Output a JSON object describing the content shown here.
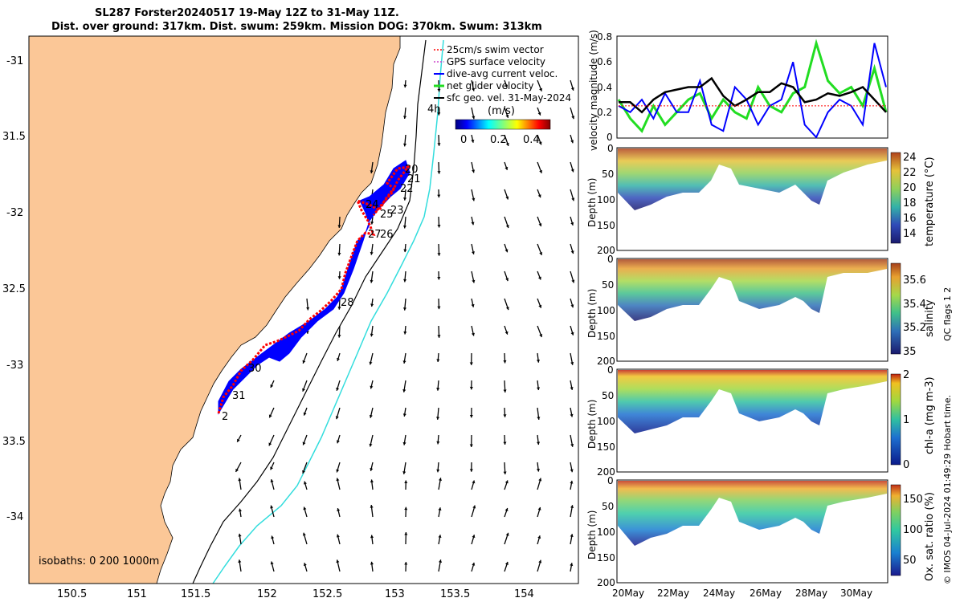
{
  "header": {
    "title_line1": "SL287 Forster20240517 19-May 12Z to 31-May 11Z.",
    "title_line2": "Dist. over ground: 317km. Dist. swum: 259km. Mission DOG: 370km. Swum: 313km"
  },
  "colors": {
    "land": "#fbc797",
    "track_red": "#ff0000",
    "dive_blue": "#0000ff",
    "net_green": "#22dd22",
    "geo_black": "#000000",
    "isobath_cyan": "#33dddd",
    "swim_vector_red": "#ff0000"
  },
  "map": {
    "lon_ticks": [
      "150.5",
      "151",
      "151.5",
      "152",
      "152.5",
      "153",
      "153.5",
      "154"
    ],
    "lat_ticks": [
      "-31",
      "31.5",
      "-32",
      "32.5",
      "-33",
      "33.5",
      "-34"
    ],
    "xlim": [
      150.2,
      154.45
    ],
    "ylim": [
      -34.45,
      -30.78
    ],
    "legend": [
      {
        "label": "25cm/s swim vector",
        "color": "#ff0000",
        "style": "dash"
      },
      {
        "label": "GPS surface velocity",
        "color": "#cc44cc",
        "style": "dash"
      },
      {
        "label": "dive-avg current veloc.",
        "color": "#0000ff",
        "style": "line"
      },
      {
        "label": "net glider velocity",
        "color": "#22dd22",
        "style": "line"
      },
      {
        "label": "sfc geo. vel. 31-May-2024",
        "color": "#000000",
        "style": "line"
      }
    ],
    "colorbar": {
      "unit": "(m/s)",
      "ticks": [
        "0",
        "0.2",
        "0.4"
      ],
      "range": [
        0,
        0.5
      ]
    },
    "scale_vector_label": "4h",
    "isobaths_label": "isobaths: 0   200  1000m",
    "day_labels": [
      "20",
      "21",
      "22",
      "24",
      "23",
      "25",
      "27",
      "26",
      "28",
      "30",
      "31",
      "2"
    ]
  },
  "velocity_panel": {
    "ylabel": "velocity magnitude (m/s)",
    "ylim": [
      0,
      0.8
    ],
    "yticks": [
      "0",
      "0.2",
      "0.4",
      "0.6",
      "0.8"
    ]
  },
  "profiles": [
    {
      "id": "temperature",
      "ylabel": "Depth (m)",
      "cbar_label": "temperature (°C)",
      "cbar_ticks": [
        "14",
        "16",
        "18",
        "20",
        "22",
        "24"
      ],
      "cbar_range": [
        13,
        25
      ],
      "yticks": [
        "0",
        "50",
        "100",
        "150",
        "200"
      ]
    },
    {
      "id": "salinity",
      "ylabel": "Depth (m)",
      "cbar_label": "salinity",
      "cbar_ticks": [
        "35",
        "35.2",
        "35.4",
        "35.6"
      ],
      "cbar_range": [
        34.95,
        35.7
      ],
      "yticks": [
        "0",
        "50",
        "100",
        "150",
        "200"
      ]
    },
    {
      "id": "chla",
      "ylabel": "Depth (m)",
      "cbar_label": "chl-a (mg m-3)",
      "cbar_ticks": [
        "0",
        "1",
        "2"
      ],
      "cbar_range": [
        0,
        2
      ],
      "yticks": [
        "0",
        "50",
        "100",
        "150",
        "200"
      ]
    },
    {
      "id": "oxygen",
      "ylabel": "Depth (m)",
      "cbar_label": "Ox. sat. ratio (%)",
      "cbar_ticks": [
        "50",
        "100",
        "150"
      ],
      "cbar_range": [
        25,
        175
      ],
      "yticks": [
        "0",
        "50",
        "100",
        "150",
        "200"
      ]
    }
  ],
  "time_axis": {
    "ticks": [
      "20May",
      "22May",
      "24May",
      "26May",
      "28May",
      "30May"
    ]
  },
  "side_note": "QC flags 1  2",
  "footer": "© IMOS 04-Jul-2024 01:49:29 Hobart time.",
  "chart_data": [
    {
      "type": "line",
      "title": "",
      "xlabel": "",
      "ylabel": "velocity magnitude (m/s)",
      "x": [
        "19.5",
        "20",
        "20.5",
        "21",
        "21.5",
        "22",
        "22.5",
        "23",
        "23.5",
        "24",
        "24.5",
        "25",
        "25.5",
        "26",
        "26.5",
        "27",
        "27.5",
        "28",
        "28.5",
        "29",
        "29.5",
        "30",
        "30.5",
        "31"
      ],
      "ylim": [
        0,
        0.8
      ],
      "series": [
        {
          "name": "net glider velocity",
          "values": [
            0.3,
            0.15,
            0.05,
            0.25,
            0.1,
            0.2,
            0.3,
            0.35,
            0.15,
            0.3,
            0.2,
            0.15,
            0.4,
            0.25,
            0.2,
            0.35,
            0.4,
            0.75,
            0.45,
            0.35,
            0.4,
            0.25,
            0.55,
            0.2
          ]
        },
        {
          "name": "dive-avg current veloc.",
          "values": [
            0.25,
            0.2,
            0.3,
            0.15,
            0.35,
            0.2,
            0.2,
            0.45,
            0.1,
            0.05,
            0.4,
            0.3,
            0.1,
            0.25,
            0.3,
            0.6,
            0.1,
            0.0,
            0.2,
            0.3,
            0.25,
            0.1,
            0.75,
            0.4
          ]
        },
        {
          "name": "sfc geo. vel. 31-May-2024",
          "values": [
            0.28,
            0.28,
            0.2,
            0.3,
            0.36,
            0.38,
            0.4,
            0.4,
            0.47,
            0.33,
            0.25,
            0.3,
            0.36,
            0.36,
            0.43,
            0.4,
            0.28,
            0.3,
            0.35,
            0.33,
            0.36,
            0.4,
            0.3,
            0.2
          ]
        },
        {
          "name": "25cm/s swim vector",
          "values": [
            0.25,
            0.25,
            0.25,
            0.25,
            0.25,
            0.25,
            0.25,
            0.25,
            0.25,
            0.25,
            0.25,
            0.25,
            0.25,
            0.25,
            0.25,
            0.25,
            0.25,
            0.25,
            0.25,
            0.25,
            0.25,
            0.25,
            0.25,
            0.25
          ]
        }
      ]
    },
    {
      "type": "heatmap",
      "title": "",
      "xlabel": "",
      "ylabel": "Depth (m)",
      "x": [
        "19.5",
        "20",
        "20.5",
        "21",
        "21.5",
        "22",
        "22.5",
        "23",
        "23.5",
        "24",
        "24.5",
        "25",
        "25.5",
        "26",
        "26.5",
        "27",
        "27.5",
        "28",
        "28.5",
        "29",
        "29.5",
        "30",
        "30.5",
        "31"
      ],
      "bottom_depth_m": [
        90,
        125,
        110,
        95,
        115,
        105,
        100,
        95,
        90,
        35,
        90,
        100,
        105,
        110,
        95,
        105,
        110,
        120,
        45,
        35,
        30,
        25,
        20,
        15
      ],
      "ylim": [
        200,
        0
      ]
    }
  ]
}
